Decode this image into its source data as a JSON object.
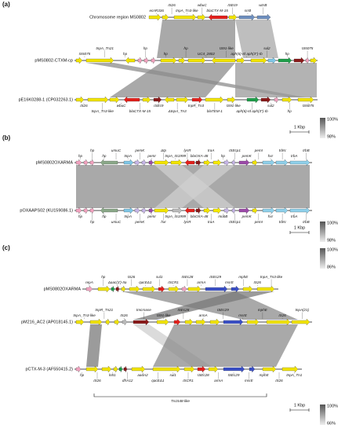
{
  "panels": [
    {
      "tag": "(a)",
      "tracks": [
        {
          "name": "Chromosome region MS0802",
          "labels": [
            "ecnR336",
            "IS26",
            "tnpA_Tn3-like",
            "wbuC",
            "blaCTX-M-15",
            "ISEc9",
            "srrB",
            "wzrB"
          ]
        },
        {
          "name": "pMS0802-CTXM-cp",
          "labels": [
            "IS5075",
            "tnpA_Tn21",
            "hp",
            "hp",
            "hp",
            "hp",
            "UC4_2802",
            "IS91-like",
            "aph(6)-Id aph(3'')-Ib",
            "sul2",
            "hp",
            "IS5075"
          ]
        },
        {
          "name": "pE16K0288-1 (CP032263.1)",
          "labels": [
            "IS26",
            "tnpA_Tn3-like",
            "wbuC",
            "blaCTX-M-15",
            "ISEc9",
            "ΔtnpA_Tn3",
            "tnpR_Tn3",
            "blaTEM-1",
            "IS91-like",
            "aph(6)-Id aph(3'')-Ib",
            "sul2",
            "hp",
            "IS5075"
          ]
        }
      ],
      "scale": "1 Kbp",
      "gradients": [
        {
          "max": "100%",
          "min": "98%"
        }
      ]
    },
    {
      "tag": "(b)",
      "tracks": [
        {
          "name": "pMS0802OXARMA",
          "labels": [
            "hp",
            "hp",
            "hp",
            "umuC",
            "tnpA",
            "pemK",
            "pemI",
            "Δtp",
            "tnpA_IS1999",
            "lysR",
            "blaOXA-48",
            "traA",
            "hp",
            "ISEcp1",
            "pemK",
            "pemI",
            "hxr",
            "trbN",
            "trbA",
            "trbB"
          ]
        },
        {
          "name": "pOXAAPS02 (KU159086.1)",
          "labels": [
            "hp",
            "hp",
            "hp",
            "umuC",
            "tnpA",
            "pemK",
            "pemI",
            "hxr",
            "tnpA_IS1999",
            "lysR",
            "blaOXA-48",
            "traA",
            "mobB",
            "ISEcp1",
            "pemK",
            "pemI",
            "hxr",
            "trbN",
            "trbA",
            "trbB"
          ]
        }
      ],
      "scale": "1 Kbp",
      "gradients": [
        {
          "max": "100%",
          "min": "98%"
        }
      ]
    },
    {
      "tag": "(c)",
      "tracks": [
        {
          "name": "pMS0802OXARMA",
          "labels": [
            "repA",
            "hp",
            "Δaac(3')-IIa",
            "IS26",
            "qacEΔ1",
            "sul1",
            "ISCR1",
            "ISEc28",
            "armA",
            "ISEc29",
            "msrE",
            "mphE",
            "IS26",
            "tnpA_Tn3-like"
          ]
        },
        {
          "name": "pM216_AC2 (AP018145.1)",
          "labels": [
            "tnpA_Tn3-like",
            "tnpR_Tn21",
            "IS26",
            "tmcrnase",
            "IS91-like",
            "ISEc28",
            "armA",
            "ISEc29",
            "msrE",
            "mphE",
            "IS26",
            "tnpA(21)"
          ]
        },
        {
          "name": "pCTX-M-3 (AF550415.2)",
          "labels": [
            "hp",
            "IS26",
            "lntI1",
            "dfrA12",
            "aadA2",
            "qacEΔ1",
            "sul1",
            "ISCR1",
            "ISEc28",
            "armA",
            "ISEc29",
            "msrE",
            "mphE",
            "IS26",
            "tnpA_Tn1"
          ]
        }
      ],
      "bracket": "Tn1548-like",
      "scale": "1 Kbp",
      "gradients": [
        {
          "max": "100%",
          "min": "86%"
        },
        {
          "max": "100%",
          "min": "66%"
        }
      ]
    }
  ]
}
